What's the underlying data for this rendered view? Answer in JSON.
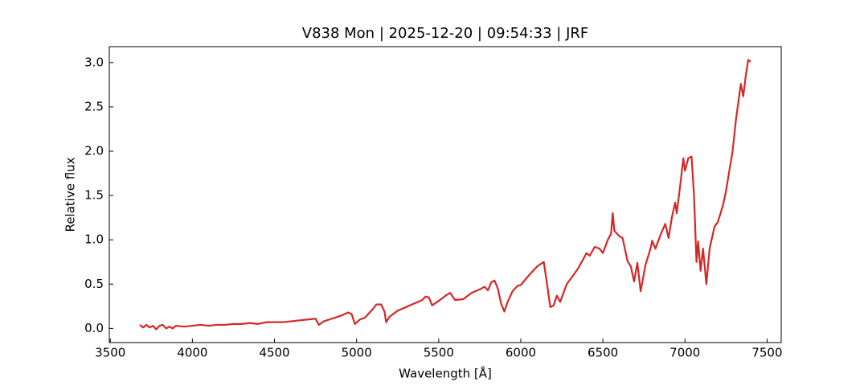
{
  "chart_data": {
    "type": "line",
    "title": "V838 Mon | 2025-12-20 | 09:54:33 | JRF",
    "x_label": "Wavelength [Å]",
    "y_label": "Relative flux",
    "color": "#d62728",
    "x": [
      3680,
      3700,
      3720,
      3740,
      3760,
      3780,
      3800,
      3820,
      3840,
      3860,
      3880,
      3900,
      3950,
      4000,
      4050,
      4100,
      4150,
      4200,
      4250,
      4300,
      4350,
      4400,
      4450,
      4500,
      4550,
      4600,
      4650,
      4700,
      4750,
      4770,
      4800,
      4850,
      4900,
      4950,
      4970,
      4990,
      5020,
      5050,
      5080,
      5100,
      5120,
      5150,
      5170,
      5180,
      5200,
      5250,
      5300,
      5350,
      5400,
      5420,
      5440,
      5460,
      5500,
      5550,
      5570,
      5600,
      5650,
      5700,
      5750,
      5780,
      5800,
      5820,
      5840,
      5860,
      5880,
      5900,
      5920,
      5950,
      5980,
      6000,
      6050,
      6100,
      6140,
      6160,
      6180,
      6200,
      6220,
      6240,
      6280,
      6320,
      6350,
      6380,
      6400,
      6420,
      6450,
      6480,
      6500,
      6530,
      6550,
      6560,
      6570,
      6600,
      6620,
      6650,
      6670,
      6690,
      6710,
      6730,
      6760,
      6790,
      6800,
      6820,
      6850,
      6880,
      6900,
      6920,
      6940,
      6950,
      6970,
      6990,
      7000,
      7020,
      7040,
      7055,
      7070,
      7080,
      7095,
      7110,
      7130,
      7150,
      7180,
      7200,
      7230,
      7250,
      7270,
      7290,
      7310,
      7330,
      7340,
      7355,
      7370,
      7385,
      7400
    ],
    "values": [
      0.04,
      0.01,
      0.04,
      0.01,
      0.03,
      -0.01,
      0.03,
      0.04,
      0.0,
      0.02,
      0.0,
      0.03,
      0.02,
      0.03,
      0.04,
      0.03,
      0.04,
      0.04,
      0.05,
      0.05,
      0.06,
      0.05,
      0.07,
      0.07,
      0.07,
      0.08,
      0.09,
      0.1,
      0.11,
      0.04,
      0.08,
      0.11,
      0.14,
      0.18,
      0.16,
      0.05,
      0.1,
      0.12,
      0.18,
      0.22,
      0.27,
      0.27,
      0.19,
      0.07,
      0.13,
      0.2,
      0.24,
      0.28,
      0.32,
      0.36,
      0.35,
      0.26,
      0.31,
      0.38,
      0.4,
      0.32,
      0.33,
      0.4,
      0.44,
      0.47,
      0.43,
      0.52,
      0.54,
      0.45,
      0.28,
      0.19,
      0.3,
      0.42,
      0.48,
      0.49,
      0.6,
      0.7,
      0.75,
      0.5,
      0.24,
      0.26,
      0.37,
      0.3,
      0.5,
      0.6,
      0.68,
      0.78,
      0.85,
      0.82,
      0.92,
      0.9,
      0.85,
      1.0,
      1.07,
      1.3,
      1.1,
      1.04,
      1.02,
      0.76,
      0.7,
      0.53,
      0.74,
      0.42,
      0.72,
      0.9,
      0.99,
      0.9,
      1.05,
      1.18,
      1.02,
      1.25,
      1.42,
      1.3,
      1.6,
      1.92,
      1.78,
      1.92,
      1.94,
      1.5,
      0.75,
      0.98,
      0.65,
      0.9,
      0.5,
      0.9,
      1.15,
      1.2,
      1.38,
      1.55,
      1.78,
      2.0,
      2.35,
      2.62,
      2.76,
      2.62,
      2.85,
      3.03,
      3.01
    ],
    "xlim": [
      3494,
      7586
    ],
    "ylim": [
      -0.16,
      3.18
    ],
    "xticks": [
      3500,
      4000,
      4500,
      5000,
      5500,
      6000,
      6500,
      7000,
      7500
    ],
    "yticks": [
      {
        "value": 0,
        "label": "0.0"
      },
      {
        "value": 0.5,
        "label": "0.5"
      },
      {
        "value": 1,
        "label": "1.0"
      },
      {
        "value": 1.5,
        "label": "1.5"
      },
      {
        "value": 2,
        "label": "2.0"
      },
      {
        "value": 2.5,
        "label": "2.5"
      },
      {
        "value": 3,
        "label": "3.0"
      }
    ],
    "grid": false
  }
}
